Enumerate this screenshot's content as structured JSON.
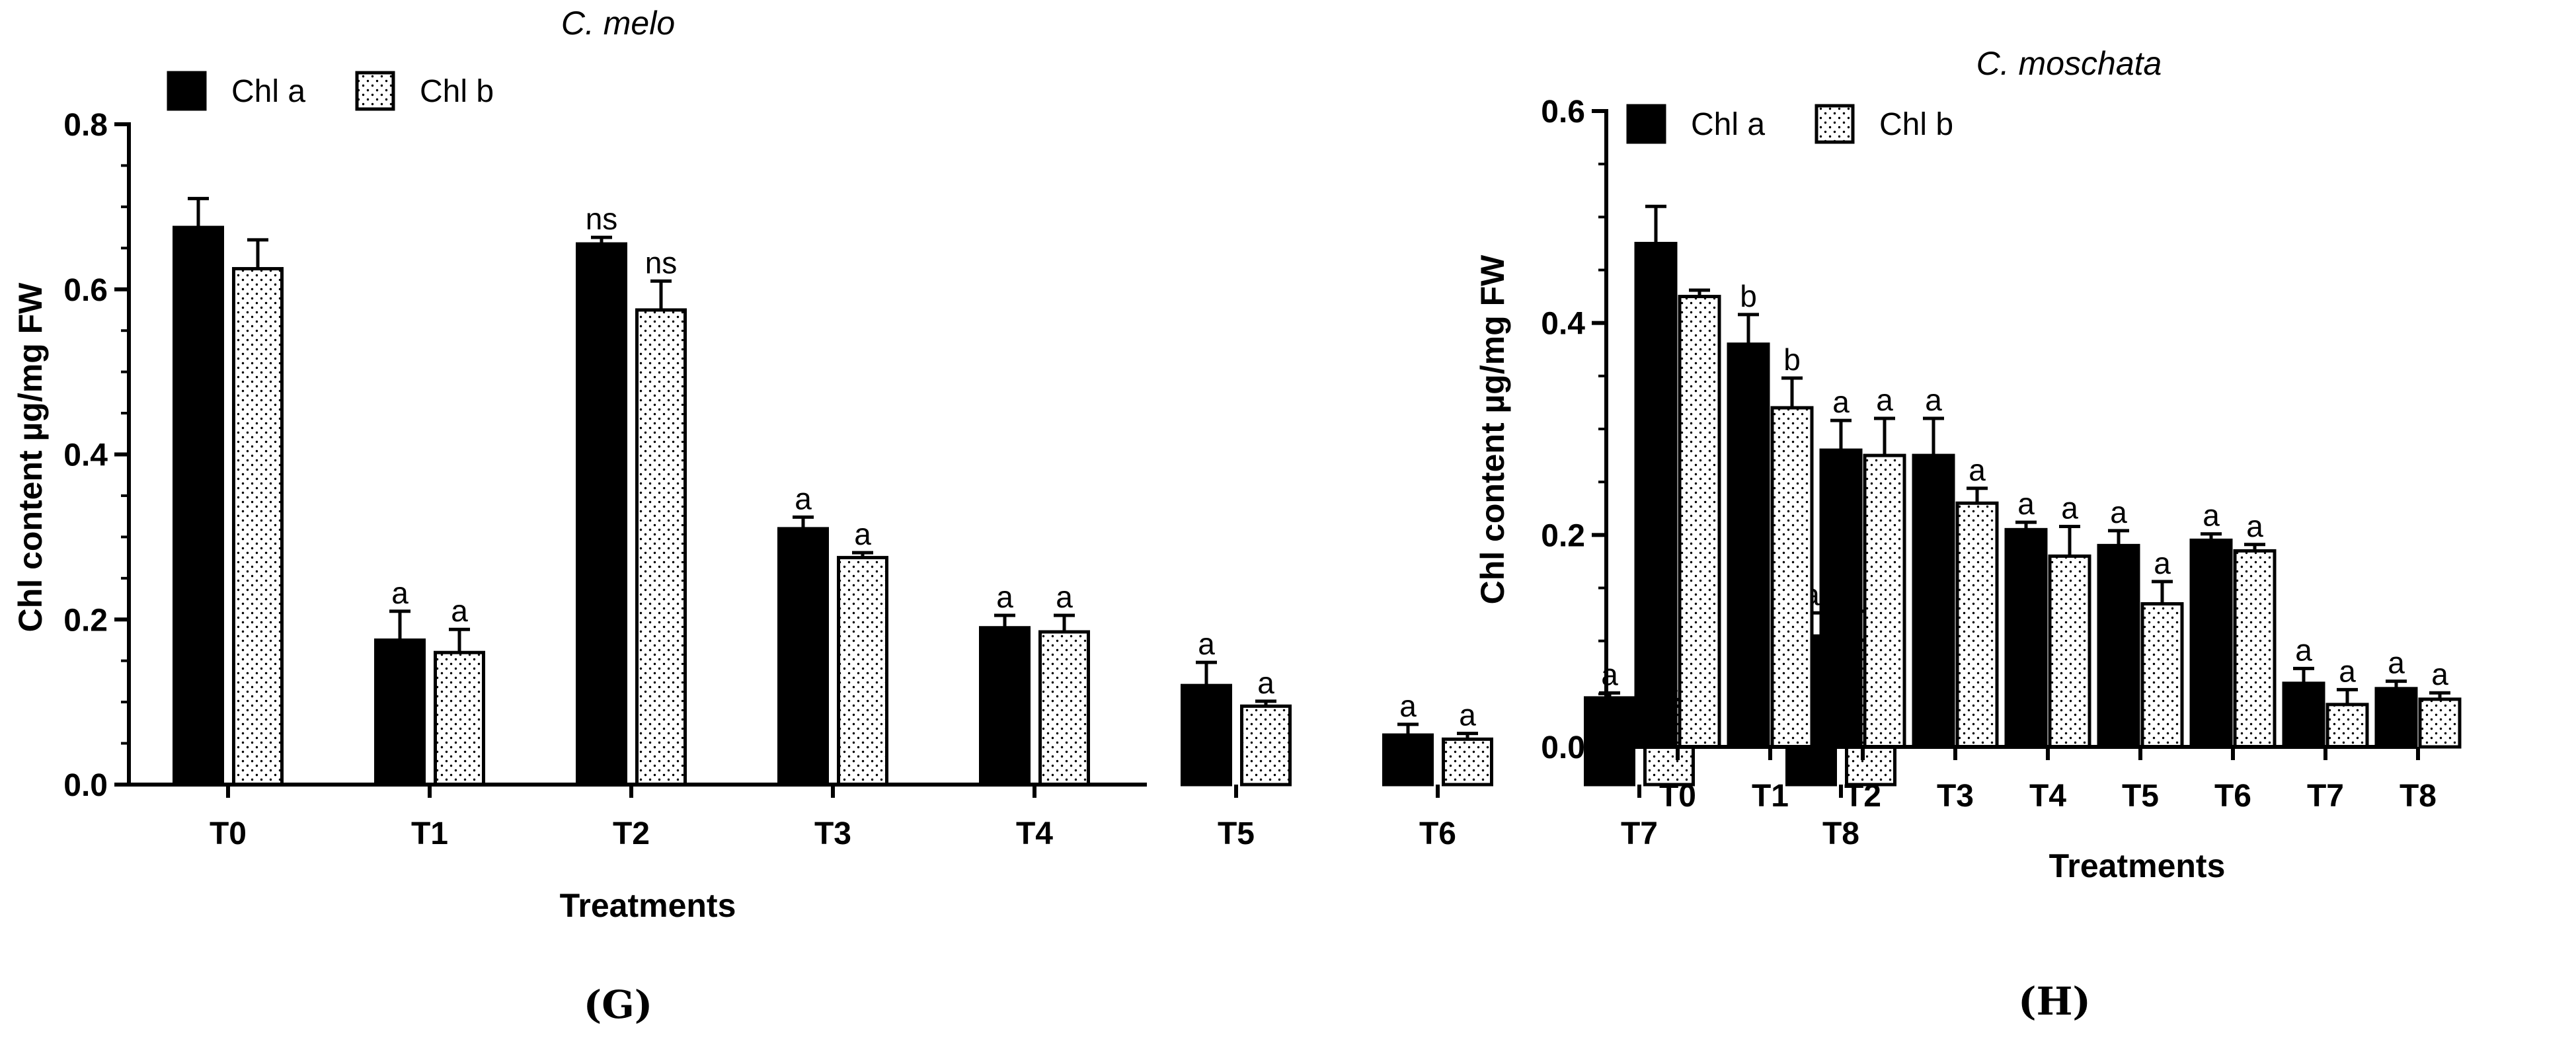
{
  "figure": {
    "panel_labels": [
      "(G)",
      "(H)"
    ]
  },
  "chart_data": [
    {
      "type": "bar",
      "title": "C. melo",
      "xlabel": "Treatments",
      "ylabel": "Chl content µg/mg FW",
      "ylim": [
        0,
        0.8
      ],
      "yticks": [
        "0.0",
        "0.2",
        "0.4",
        "0.6",
        "0.8"
      ],
      "categories": [
        "T0",
        "T1",
        "T2",
        "T3",
        "T4",
        "T5",
        "T6",
        "T7",
        "T8"
      ],
      "legend": {
        "position": "top-left",
        "entries": [
          "Chl a",
          "Chl b"
        ]
      },
      "grid": false,
      "series": [
        {
          "name": "Chl a",
          "pattern": "solid",
          "values": [
            0.675,
            0.175,
            0.655,
            0.31,
            0.19,
            0.12,
            0.06,
            0.105,
            0.18
          ],
          "errors": [
            0.035,
            0.035,
            0.008,
            0.014,
            0.015,
            0.028,
            0.013,
            0.006,
            0.028
          ],
          "labels": [
            "",
            "a",
            "ns",
            "a",
            "a",
            "a",
            "a",
            "a",
            "a"
          ]
        },
        {
          "name": "Chl b",
          "pattern": "dotted",
          "values": [
            0.625,
            0.16,
            0.575,
            0.275,
            0.185,
            0.095,
            0.055,
            0.095,
            0.175
          ],
          "errors": [
            0.035,
            0.028,
            0.035,
            0.006,
            0.02,
            0.006,
            0.007,
            0.008,
            0.035
          ],
          "labels": [
            "",
            "a",
            "ns",
            "a",
            "a",
            "a",
            "a",
            "a",
            "a"
          ]
        }
      ]
    },
    {
      "type": "bar",
      "title": "C. moschata",
      "xlabel": "Treatments",
      "ylabel": "Chl content µg/mg FW",
      "ylim": [
        0,
        0.6
      ],
      "yticks": [
        "0.0",
        "0.2",
        "0.4",
        "0.6"
      ],
      "categories": [
        "T0",
        "T1",
        "T2",
        "T3",
        "T4",
        "T5",
        "T6",
        "T7",
        "T8"
      ],
      "legend": {
        "position": "top-left",
        "entries": [
          "Chl a",
          "Chl b"
        ]
      },
      "grid": false,
      "series": [
        {
          "name": "Chl a",
          "pattern": "solid",
          "values": [
            0.475,
            0.38,
            0.28,
            0.275,
            0.205,
            0.19,
            0.195,
            0.06,
            0.055
          ],
          "errors": [
            0.035,
            0.028,
            0.028,
            0.035,
            0.007,
            0.014,
            0.006,
            0.014,
            0.007
          ],
          "labels": [
            "",
            "b",
            "a",
            "a",
            "a",
            "a",
            "a",
            "a",
            "a"
          ]
        },
        {
          "name": "Chl b",
          "pattern": "dotted",
          "values": [
            0.425,
            0.32,
            0.275,
            0.23,
            0.18,
            0.135,
            0.185,
            0.04,
            0.045
          ],
          "errors": [
            0.006,
            0.028,
            0.035,
            0.014,
            0.028,
            0.021,
            0.006,
            0.014,
            0.006
          ],
          "labels": [
            "",
            "b",
            "a",
            "a",
            "a",
            "a",
            "a",
            "a",
            "a"
          ]
        }
      ]
    }
  ]
}
